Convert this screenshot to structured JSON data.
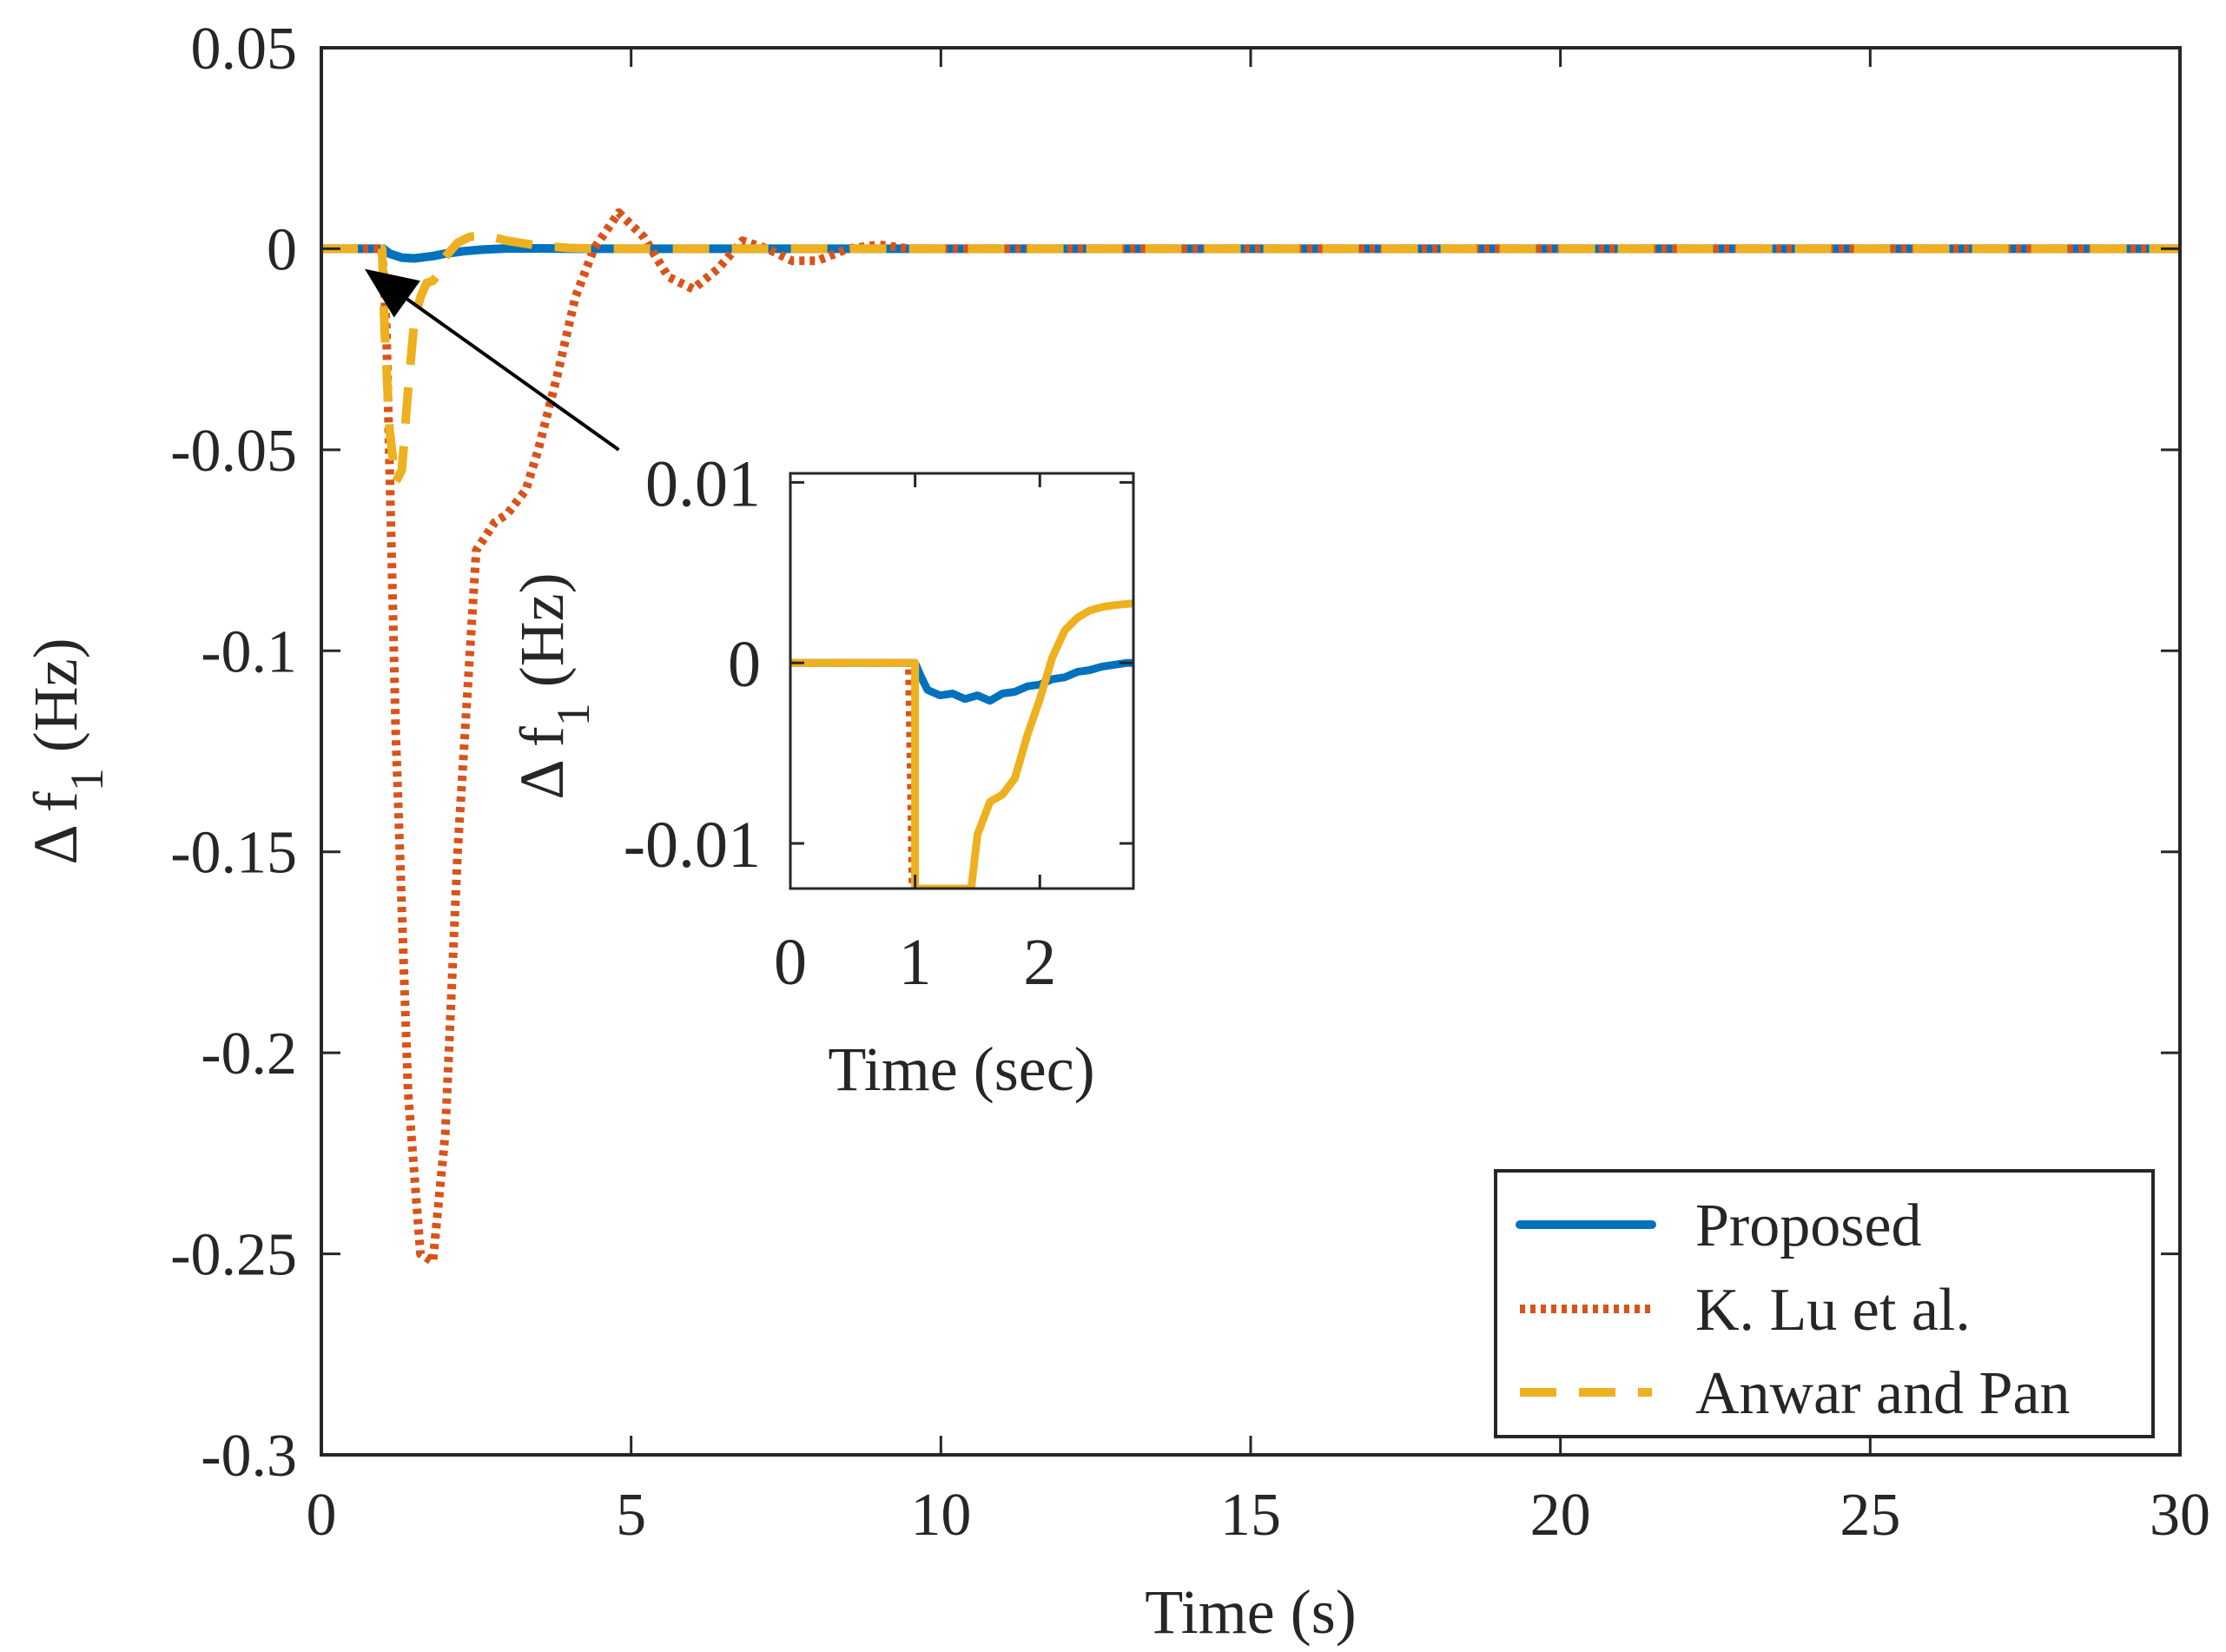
{
  "chart_data": [
    {
      "type": "line",
      "role": "main",
      "xlabel": "Time (s)",
      "ylabel": "Δ f1 (Hz)",
      "ylabel_base": "Δ f",
      "ylabel_sub": "1",
      "ylabel_unit": "(Hz)",
      "xlim": [
        0,
        30
      ],
      "ylim": [
        -0.3,
        0.05
      ],
      "xticks": [
        0,
        5,
        10,
        15,
        20,
        25,
        30
      ],
      "xtick_labels": [
        "0",
        "5",
        "10",
        "15",
        "20",
        "25",
        "30"
      ],
      "yticks": [
        0.05,
        0,
        -0.05,
        -0.1,
        -0.15,
        -0.2,
        -0.25,
        -0.3
      ],
      "ytick_labels": [
        "0.05",
        "0",
        "-0.05",
        "-0.1",
        "-0.15",
        "-0.2",
        "-0.25",
        "-0.3"
      ],
      "grid": false,
      "legend_position": "bottom-right",
      "series": [
        {
          "name": "Proposed",
          "color": "#0072BD",
          "style": "solid",
          "x": [
            0,
            1.0,
            1.1,
            1.3,
            1.5,
            1.8,
            2.0,
            2.3,
            2.6,
            3.0,
            3.5,
            4.0,
            5.0,
            30
          ],
          "y": [
            0,
            0,
            -0.0012,
            -0.0022,
            -0.0024,
            -0.0018,
            -0.0012,
            -0.0006,
            -0.0002,
            0.0001,
            0.0001,
            0,
            0,
            0
          ]
        },
        {
          "name": "K. Lu et al.",
          "color": "#D95319",
          "style": "dotted",
          "x": [
            0,
            0.98,
            1.05,
            1.2,
            1.4,
            1.6,
            1.8,
            2.0,
            2.2,
            2.5,
            2.8,
            3.0,
            3.3,
            3.5,
            3.8,
            4.1,
            4.4,
            4.8,
            5.2,
            5.6,
            6.0,
            6.4,
            6.8,
            7.2,
            7.6,
            8.0,
            8.5,
            9.0,
            9.5,
            10.0,
            30
          ],
          "y": [
            0,
            0,
            -0.02,
            -0.12,
            -0.21,
            -0.25,
            -0.252,
            -0.22,
            -0.15,
            -0.075,
            -0.068,
            -0.066,
            -0.06,
            -0.05,
            -0.032,
            -0.012,
            0.0,
            0.009,
            0.003,
            -0.007,
            -0.01,
            -0.005,
            0.002,
            0.0,
            -0.003,
            -0.003,
            0.0,
            0.001,
            0.0,
            0.0,
            0
          ]
        },
        {
          "name": "Anwar and Pan",
          "color": "#EDB120",
          "style": "dashed",
          "x": [
            0,
            0.98,
            1.02,
            1.1,
            1.2,
            1.3,
            1.4,
            1.5,
            1.6,
            1.7,
            1.8,
            1.9,
            2.0,
            2.2,
            2.4,
            2.7,
            3.0,
            3.5,
            4.0,
            4.5,
            30
          ],
          "y": [
            0,
            0,
            -0.02,
            -0.045,
            -0.058,
            -0.055,
            -0.035,
            -0.018,
            -0.012,
            -0.0085,
            -0.008,
            -0.006,
            -0.002,
            0.0015,
            0.003,
            0.0032,
            0.002,
            0.0008,
            0.0002,
            0,
            0
          ]
        }
      ]
    },
    {
      "type": "line",
      "role": "inset",
      "xlabel": "Time (sec)",
      "ylabel": "Δ f1 (Hz)",
      "ylabel_base": "Δ f",
      "ylabel_sub": "1",
      "ylabel_unit": "(Hz)",
      "xlim": [
        0,
        2.75
      ],
      "ylim": [
        -0.0125,
        0.0105
      ],
      "xticks": [
        0,
        1,
        2
      ],
      "xtick_labels": [
        "0",
        "1",
        "2"
      ],
      "yticks": [
        0.01,
        0,
        -0.01
      ],
      "ytick_labels": [
        "0.01",
        "0",
        "-0.01"
      ],
      "grid": false,
      "series": [
        {
          "name": "Proposed",
          "color": "#0072BD",
          "style": "solid",
          "x": [
            0,
            1.0,
            1.05,
            1.1,
            1.2,
            1.3,
            1.4,
            1.5,
            1.6,
            1.7,
            1.8,
            1.9,
            2.0,
            2.1,
            2.2,
            2.3,
            2.4,
            2.5,
            2.6,
            2.7,
            2.75
          ],
          "y": [
            0,
            0,
            -0.0008,
            -0.0015,
            -0.0018,
            -0.0017,
            -0.002,
            -0.0018,
            -0.0021,
            -0.0017,
            -0.0016,
            -0.0013,
            -0.0012,
            -0.0009,
            -0.0008,
            -0.0005,
            -0.0004,
            -0.0002,
            -0.0001,
            0,
            0
          ]
        },
        {
          "name": "K. Lu et al.",
          "color": "#D95319",
          "style": "dotted",
          "x": [
            0,
            0.95,
            0.96,
            0.98
          ],
          "y": [
            0,
            0,
            -0.004,
            -0.0125
          ]
        },
        {
          "name": "Anwar and Pan",
          "color": "#EDB120",
          "style": "solid",
          "x": [
            0,
            1.0,
            1.0,
            1.45,
            1.5,
            1.6,
            1.7,
            1.8,
            1.9,
            2.0,
            2.1,
            2.2,
            2.3,
            2.4,
            2.5,
            2.6,
            2.75
          ],
          "y": [
            0,
            0,
            -0.0125,
            -0.0125,
            -0.0095,
            -0.0077,
            -0.0073,
            -0.0064,
            -0.004,
            -0.002,
            0.0003,
            0.0018,
            0.0025,
            0.0029,
            0.0031,
            0.0032,
            0.0033
          ]
        }
      ]
    }
  ],
  "annotation": {
    "type": "arrow",
    "from_data": [
      4.8,
      -0.05
    ],
    "to_data": [
      0.7,
      -0.005
    ],
    "color": "#000000"
  }
}
